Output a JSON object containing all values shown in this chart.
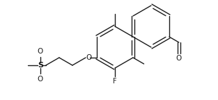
{
  "bg_color": "#ffffff",
  "line_color": "#1a1a1a",
  "line_width": 1.0,
  "figsize": [
    3.13,
    1.44
  ],
  "dpi": 100,
  "xlim": [
    0,
    313
  ],
  "ylim": [
    0,
    144
  ]
}
